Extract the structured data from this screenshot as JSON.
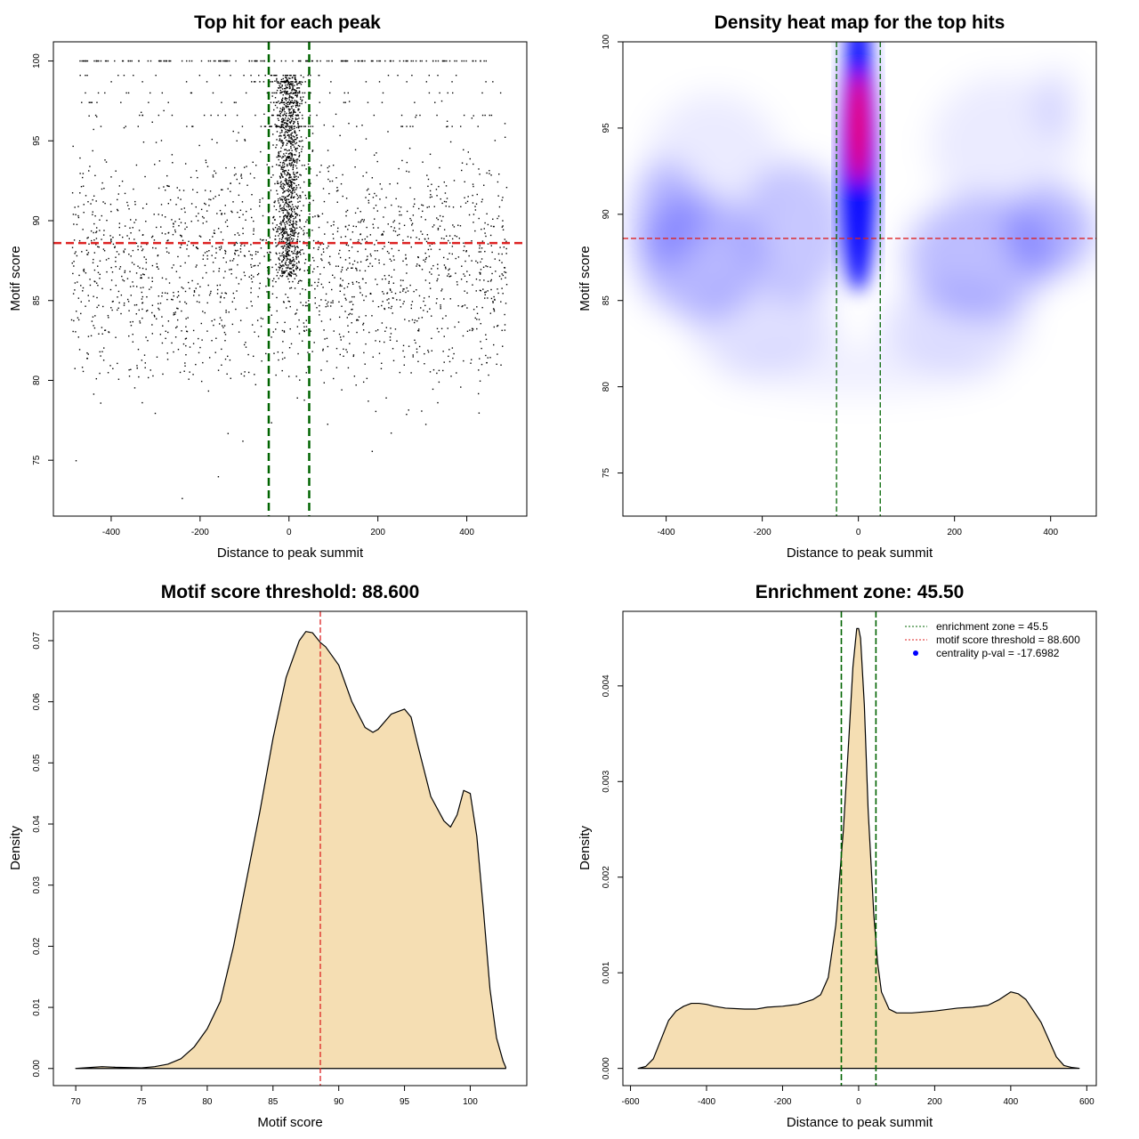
{
  "chart_data": [
    {
      "type": "scatter",
      "title": "Top hit for each peak",
      "xlabel": "Distance to peak summit",
      "ylabel": "Motif score",
      "xlim": [
        -530,
        535
      ],
      "ylim": [
        71.5,
        101.2
      ],
      "xticks": [
        -400,
        -200,
        0,
        200,
        400
      ],
      "yticks": [
        75,
        80,
        85,
        90,
        95,
        100
      ],
      "xtick_labels": [
        "-400",
        "-200",
        "0",
        "200",
        "400"
      ],
      "ytick_labels": [
        "75",
        "80",
        "85",
        "90",
        "95",
        "100"
      ],
      "hlines": [
        {
          "y": 88.6,
          "color": "#dd2222",
          "style": "dashed"
        }
      ],
      "vlines": [
        {
          "x": -45.5,
          "color": "#006400",
          "style": "dashed"
        },
        {
          "x": 45.5,
          "color": "#006400",
          "style": "dashed"
        }
      ],
      "point_color": "#000000",
      "approx_n_points": 3200
    },
    {
      "type": "heatmap",
      "title": "Density heat map for the top hits",
      "xlabel": "Distance to peak summit",
      "ylabel": "Motif score",
      "xlim": [
        -490,
        495
      ],
      "ylim": [
        72.5,
        100.0
      ],
      "xticks": [
        -400,
        -200,
        0,
        200,
        400
      ],
      "yticks": [
        75,
        80,
        85,
        90,
        95,
        100
      ],
      "xtick_labels": [
        "-400",
        "-200",
        "0",
        "200",
        "400"
      ],
      "ytick_labels": [
        "75",
        "80",
        "85",
        "90",
        "95",
        "100"
      ],
      "hlines": [
        {
          "y": 88.6,
          "color": "#dd2222",
          "style": "dashed"
        }
      ],
      "vlines": [
        {
          "x": -45.5,
          "color": "#006400",
          "style": "dashed"
        },
        {
          "x": 45.5,
          "color": "#006400",
          "style": "dashed"
        }
      ],
      "colors": [
        "#ffffff",
        "#0000ff",
        "#ff0000"
      ],
      "peak_density_at": {
        "x": 0,
        "y": 95
      }
    },
    {
      "type": "area",
      "title": "Motif score threshold: 88.600",
      "xlabel": "Motif score",
      "ylabel": "Density",
      "xlim": [
        68.3,
        104.3
      ],
      "ylim": [
        -0.0028,
        0.0748
      ],
      "xticks": [
        70,
        75,
        80,
        85,
        90,
        95,
        100
      ],
      "yticks": [
        0.0,
        0.01,
        0.02,
        0.03,
        0.04,
        0.05,
        0.06,
        0.07
      ],
      "xtick_labels": [
        "70",
        "75",
        "80",
        "85",
        "90",
        "95",
        "100"
      ],
      "ytick_labels": [
        "0.00",
        "0.01",
        "0.02",
        "0.03",
        "0.04",
        "0.05",
        "0.06",
        "0.07"
      ],
      "fill_color": "#f5deb3",
      "vlines": [
        {
          "x": 88.6,
          "color": "#dd2222",
          "style": "dashed"
        }
      ],
      "x": [
        70,
        72,
        73,
        75,
        76,
        77,
        78,
        79,
        80,
        81,
        82,
        83,
        84,
        85,
        86,
        87,
        87.5,
        88,
        88.6,
        89,
        90,
        91,
        92,
        92.6,
        93,
        94,
        95,
        95.5,
        96,
        97,
        98,
        98.5,
        99,
        99.5,
        100,
        100.5,
        101,
        101.5,
        102,
        102.5,
        102.7
      ],
      "y": [
        0.0,
        0.0003,
        0.0002,
        0.0001,
        0.0003,
        0.0007,
        0.0016,
        0.0035,
        0.0065,
        0.011,
        0.02,
        0.031,
        0.042,
        0.054,
        0.064,
        0.07,
        0.0715,
        0.0713,
        0.0697,
        0.069,
        0.066,
        0.06,
        0.0558,
        0.055,
        0.0555,
        0.058,
        0.0588,
        0.0575,
        0.053,
        0.0445,
        0.0405,
        0.0395,
        0.0415,
        0.0455,
        0.045,
        0.038,
        0.026,
        0.013,
        0.005,
        0.0012,
        0.0002
      ]
    },
    {
      "type": "area",
      "title": "Enrichment zone: 45.50",
      "xlabel": "Distance to peak summit",
      "ylabel": "Density",
      "xlim": [
        -620,
        625
      ],
      "ylim": [
        -0.00018,
        0.00478
      ],
      "xticks": [
        -600,
        -400,
        -200,
        0,
        200,
        400,
        600
      ],
      "yticks": [
        0.0,
        0.001,
        0.002,
        0.003,
        0.004
      ],
      "xtick_labels": [
        "-600",
        "-400",
        "-200",
        "0",
        "200",
        "400",
        "600"
      ],
      "ytick_labels": [
        "0.000",
        "0.001",
        "0.002",
        "0.003",
        "0.004"
      ],
      "fill_color": "#f5deb3",
      "vlines": [
        {
          "x": -45.5,
          "color": "#006400",
          "style": "dashed"
        },
        {
          "x": 45.5,
          "color": "#006400",
          "style": "dashed"
        }
      ],
      "x": [
        -580,
        -560,
        -540,
        -520,
        -500,
        -480,
        -460,
        -440,
        -420,
        -400,
        -380,
        -350,
        -300,
        -270,
        -240,
        -200,
        -160,
        -120,
        -100,
        -80,
        -60,
        -40,
        -25,
        -15,
        -5,
        0,
        5,
        15,
        25,
        40,
        50,
        60,
        80,
        100,
        140,
        200,
        260,
        300,
        340,
        370,
        400,
        420,
        440,
        460,
        480,
        500,
        520,
        540,
        560,
        580
      ],
      "y": [
        0.0,
        2e-05,
        0.0001,
        0.0003,
        0.0005,
        0.0006,
        0.00065,
        0.00068,
        0.00068,
        0.00067,
        0.00065,
        0.00063,
        0.00062,
        0.00062,
        0.00064,
        0.00065,
        0.00067,
        0.00072,
        0.00077,
        0.00095,
        0.0015,
        0.0025,
        0.0035,
        0.0042,
        0.0046,
        0.0046,
        0.0045,
        0.0038,
        0.0027,
        0.0016,
        0.0011,
        0.0008,
        0.00062,
        0.00058,
        0.00058,
        0.0006,
        0.00063,
        0.00064,
        0.00066,
        0.00072,
        0.0008,
        0.00078,
        0.00072,
        0.0006,
        0.00048,
        0.0003,
        0.00012,
        3e-05,
        1e-05,
        0.0
      ],
      "legend": {
        "position": "top-right",
        "entries": [
          {
            "label": "enrichment zone = 45.5",
            "color": "#006400",
            "kind": "line"
          },
          {
            "label": "motif score threshold = 88.600",
            "color": "#dd2222",
            "kind": "line"
          },
          {
            "label": "centrality p-val = -17.6982",
            "color": "#0000ff",
            "kind": "point"
          }
        ]
      }
    }
  ]
}
